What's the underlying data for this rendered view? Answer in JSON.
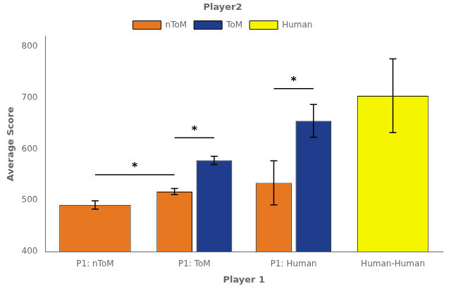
{
  "chart_data": {
    "type": "bar",
    "xlabel": "Player 1",
    "ylabel": "Average Score",
    "categories": [
      "P1: nToM",
      "P1: ToM",
      "P1: Human",
      "Human-Human"
    ],
    "series": [
      {
        "name": "nToM",
        "color": "#E87722",
        "values": [
          491,
          517,
          534,
          null
        ],
        "errors": [
          8,
          6,
          43,
          null
        ]
      },
      {
        "name": "ToM",
        "color": "#1F3D8C",
        "values": [
          null,
          578,
          655,
          null
        ],
        "errors": [
          null,
          8,
          32,
          null
        ]
      },
      {
        "name": "Human",
        "color": "#F5F500",
        "values": [
          null,
          null,
          null,
          704
        ],
        "errors": [
          null,
          null,
          null,
          72
        ]
      }
    ],
    "ylim": [
      400,
      820
    ],
    "yticks": [
      400,
      500,
      600,
      700,
      800
    ],
    "grid": false,
    "legend": "top",
    "legend_title": "Player2",
    "annotations": [
      {
        "text": "*",
        "y": 550,
        "from": {
          "category": "P1: nToM",
          "series": "nToM"
        },
        "to": {
          "category": "P1: ToM",
          "series": "nToM"
        }
      },
      {
        "text": "*",
        "y": 622,
        "from": {
          "category": "P1: ToM",
          "series": "nToM"
        },
        "to": {
          "category": "P1: ToM",
          "series": "ToM"
        }
      },
      {
        "text": "*",
        "y": 718,
        "from": {
          "category": "P1: Human",
          "series": "nToM"
        },
        "to": {
          "category": "P1: Human",
          "series": "ToM"
        }
      }
    ]
  }
}
